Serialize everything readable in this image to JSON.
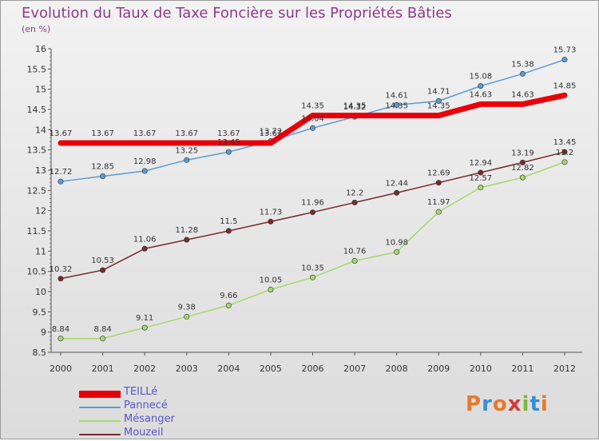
{
  "title": "Evolution du Taux de Taxe Foncière sur les Propriétés Bâties",
  "subtitle": "(en %)",
  "logo": {
    "text": "Proxiti",
    "colors": [
      "#e8792b",
      "#3a8fd6",
      "#e8792b",
      "#d23a3a",
      "#7ab83a",
      "#3a8fd6",
      "#e8792b"
    ]
  },
  "chart_data": {
    "type": "line",
    "x": [
      "2000",
      "2001",
      "2002",
      "2003",
      "2004",
      "2005",
      "2006",
      "2007",
      "2008",
      "2009",
      "2010",
      "2011",
      "2012"
    ],
    "ylim": [
      8.5,
      16
    ],
    "yticks": [
      "8.5",
      "9",
      "9.5",
      "10",
      "10.5",
      "11",
      "11.5",
      "12",
      "12.5",
      "13",
      "13.5",
      "14",
      "14.5",
      "15",
      "15.5",
      "16"
    ],
    "series": [
      {
        "name": "TEILLé",
        "color": "#e8000b",
        "width": 7,
        "marker": false,
        "values": [
          13.67,
          13.67,
          13.67,
          13.67,
          13.67,
          13.67,
          14.35,
          14.35,
          14.35,
          14.35,
          14.63,
          14.63,
          14.85
        ],
        "labels": [
          "13.67",
          "13.67",
          "13.67",
          "13.67",
          "13.67",
          "13.67",
          "14.35",
          "14.35",
          "14.35",
          "14.35",
          "14.63",
          "14.63",
          "14.85"
        ]
      },
      {
        "name": "Pannecé",
        "color": "#5a9ad6",
        "width": 1.5,
        "marker": true,
        "values": [
          12.72,
          12.85,
          12.98,
          13.25,
          13.45,
          13.72,
          14.04,
          14.32,
          14.61,
          14.71,
          15.08,
          15.38,
          15.73
        ],
        "labels": [
          "12.72",
          "12.85",
          "12.98",
          "13.25",
          "13.45",
          "13.72",
          "14.04",
          "14.32",
          "14.61",
          "14.71",
          "15.08",
          "15.38",
          "15.73"
        ]
      },
      {
        "name": "Mésanger",
        "color": "#a6d86e",
        "width": 1.5,
        "marker": true,
        "values": [
          8.84,
          8.84,
          9.11,
          9.38,
          9.66,
          10.05,
          10.35,
          10.76,
          10.98,
          11.97,
          12.57,
          12.82,
          13.2
        ],
        "labels": [
          "8.84",
          "8.84",
          "9.11",
          "9.38",
          "9.66",
          "10.05",
          "10.35",
          "10.76",
          "10.98",
          "11.97",
          "12.57",
          "12.82",
          "13.2"
        ]
      },
      {
        "name": "Mouzeil",
        "color": "#7a2a2e",
        "width": 1.5,
        "marker": true,
        "values": [
          10.32,
          10.53,
          11.06,
          11.28,
          11.5,
          11.73,
          11.96,
          12.2,
          12.44,
          12.69,
          12.94,
          13.19,
          13.45
        ],
        "labels": [
          "10.32",
          "10.53",
          "11.06",
          "11.28",
          "11.5",
          "11.73",
          "11.96",
          "12.2",
          "12.44",
          "12.69",
          "12.94",
          "13.19",
          "13.45"
        ]
      }
    ]
  }
}
